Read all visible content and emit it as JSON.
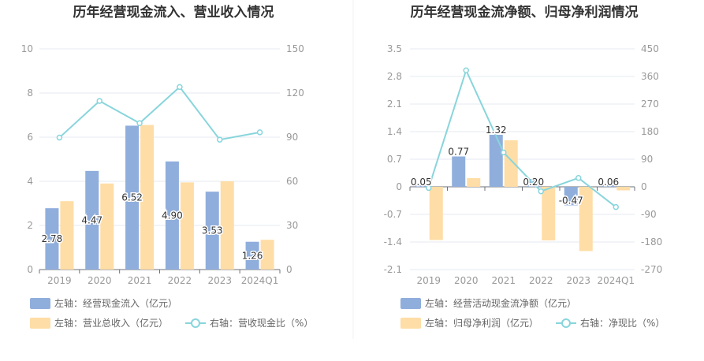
{
  "colors": {
    "bar1": "#8FAEDC",
    "bar2": "#FFDDA6",
    "line": "#88D5DC",
    "grid": "#E6E8F0",
    "axis": "#6E7079"
  },
  "chart_data": [
    {
      "type": "bar",
      "title": "历年经营现金流入、营业收入情况",
      "categories": [
        "2019",
        "2020",
        "2021",
        "2022",
        "2023",
        "2024Q1"
      ],
      "ylim_left": [
        0,
        10
      ],
      "yticks_left": [
        "0",
        "2",
        "4",
        "6",
        "8",
        "10"
      ],
      "ylim_right": [
        0,
        150
      ],
      "yticks_right": [
        "0",
        "30",
        "60",
        "90",
        "120",
        "150"
      ],
      "series": [
        {
          "name": "左轴：经营现金流入（亿元）",
          "axis": "left",
          "type": "bar",
          "values": [
            2.78,
            4.47,
            6.52,
            4.9,
            3.53,
            1.26
          ],
          "labels": [
            "2.78",
            "4.47",
            "6.52",
            "4.90",
            "3.53",
            "1.26"
          ]
        },
        {
          "name": "左轴：营业总收入（亿元）",
          "axis": "left",
          "type": "bar",
          "values": [
            3.1,
            3.9,
            6.55,
            3.95,
            4.0,
            1.35
          ]
        },
        {
          "name": "右轴：营收现金比（%）",
          "axis": "right",
          "type": "line",
          "values": [
            89.7,
            114.6,
            99.5,
            124.1,
            88.3,
            93.3
          ]
        }
      ]
    },
    {
      "type": "bar",
      "title": "历年经营现金流净额、归母净利润情况",
      "categories": [
        "2019",
        "2020",
        "2021",
        "2022",
        "2023",
        "2024Q1"
      ],
      "ylim_left": [
        -2.1,
        3.5
      ],
      "yticks_left": [
        "-2.1",
        "-1.4",
        "-0.7",
        "0",
        "0.7",
        "1.4",
        "2.1",
        "2.8",
        "3.5"
      ],
      "ylim_right": [
        -270,
        450
      ],
      "yticks_right": [
        "-270",
        "-180",
        "-90",
        "0",
        "90",
        "180",
        "270",
        "360",
        "450"
      ],
      "series": [
        {
          "name": "左轴：经营活动现金流净额（亿元）",
          "axis": "left",
          "type": "bar",
          "values": [
            0.05,
            0.77,
            1.32,
            0.2,
            -0.47,
            0.06
          ],
          "labels": [
            "0.05",
            "0.77",
            "1.32",
            "0.20",
            "-0.47",
            "0.06"
          ]
        },
        {
          "name": "左轴：归母净利润（亿元）",
          "axis": "left",
          "type": "bar",
          "values": [
            -1.35,
            0.22,
            1.18,
            -1.36,
            -1.63,
            -0.09
          ]
        },
        {
          "name": "右轴：净现比（%）",
          "axis": "right",
          "type": "line",
          "values": [
            -3.7,
            380,
            112,
            -14.7,
            28.8,
            -66
          ]
        }
      ]
    }
  ]
}
